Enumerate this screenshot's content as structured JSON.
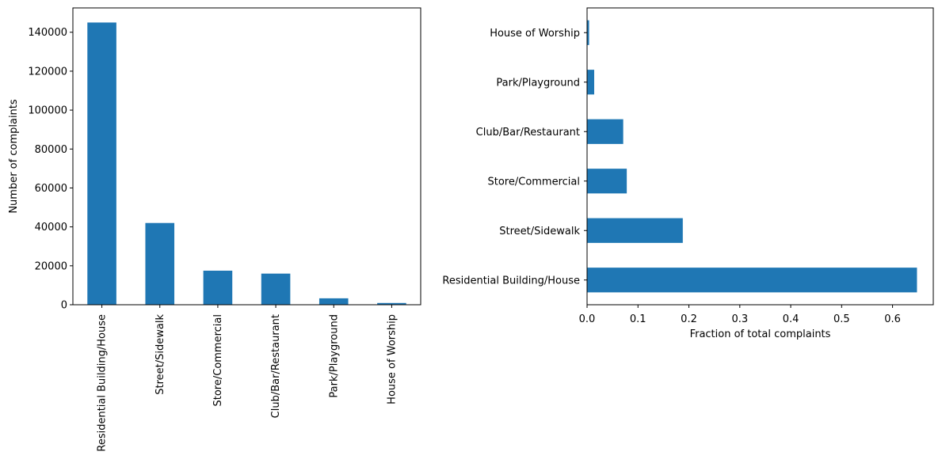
{
  "chart_data": [
    {
      "type": "bar",
      "orientation": "vertical",
      "categories": [
        "Residential Building/House",
        "Street/Sidewalk",
        "Store/Commercial",
        "Club/Bar/Restaurant",
        "Park/Playground",
        "House of Worship"
      ],
      "values": [
        145000,
        42000,
        17500,
        16000,
        3300,
        900
      ],
      "ylabel": "Number of complaints",
      "xlabel": "",
      "ylim": [
        0,
        152500
      ],
      "yticks": [
        0,
        20000,
        40000,
        60000,
        80000,
        100000,
        120000,
        140000
      ],
      "ytick_labels": [
        "0",
        "20000",
        "40000",
        "60000",
        "80000",
        "100000",
        "120000",
        "140000"
      ],
      "grid": false,
      "color": "#1f77b4"
    },
    {
      "type": "bar",
      "orientation": "horizontal",
      "categories": [
        "Residential Building/House",
        "Street/Sidewalk",
        "Store/Commercial",
        "Club/Bar/Restaurant",
        "Park/Playground",
        "House of Worship"
      ],
      "values": [
        0.648,
        0.188,
        0.078,
        0.071,
        0.014,
        0.004
      ],
      "xlabel": "Fraction of total complaints",
      "ylabel": "",
      "xlim": [
        0,
        0.68
      ],
      "xticks": [
        0.0,
        0.1,
        0.2,
        0.3,
        0.4,
        0.5,
        0.6
      ],
      "xtick_labels": [
        "0.0",
        "0.1",
        "0.2",
        "0.3",
        "0.4",
        "0.5",
        "0.6"
      ],
      "grid": false,
      "color": "#1f77b4"
    }
  ]
}
